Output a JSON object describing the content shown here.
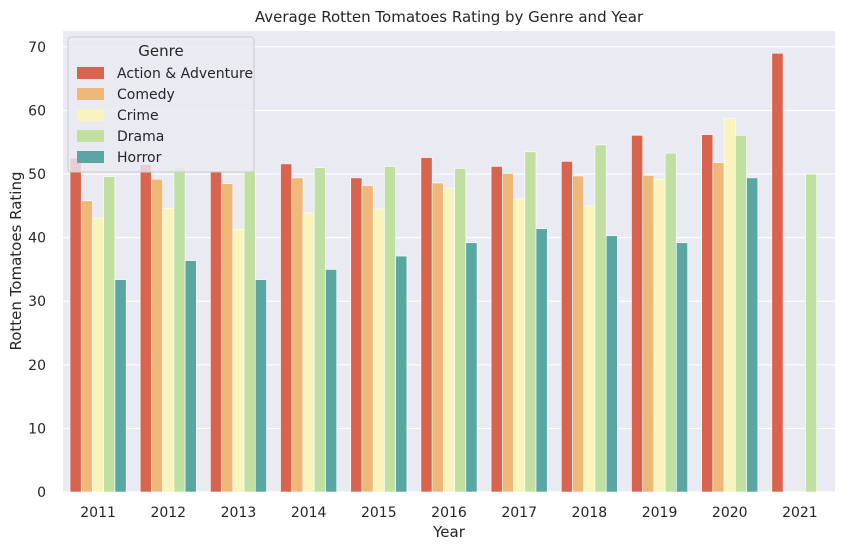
{
  "chart_data": {
    "type": "bar",
    "title": "Average Rotten Tomatoes Rating by Genre and Year",
    "xlabel": "Year",
    "ylabel": "Rotten Tomatoes Rating",
    "ylim": [
      0,
      72.5
    ],
    "yticks": [
      "0",
      "10",
      "20",
      "30",
      "40",
      "50",
      "60",
      "70"
    ],
    "grid": true,
    "legend": {
      "title": "Genre",
      "placement": "top-left"
    },
    "categories": [
      "2011",
      "2012",
      "2013",
      "2014",
      "2015",
      "2016",
      "2017",
      "2018",
      "2019",
      "2020",
      "2021"
    ],
    "series": [
      {
        "name": "Action & Adventure",
        "color": "#d9644e",
        "values": [
          52.5,
          51.5,
          50.5,
          51.6,
          49.4,
          52.6,
          51.2,
          52.0,
          56.1,
          56.2,
          69.0
        ]
      },
      {
        "name": "Comedy",
        "color": "#eeb978",
        "values": [
          45.8,
          49.2,
          48.5,
          49.4,
          48.2,
          48.6,
          50.1,
          49.7,
          49.8,
          51.8,
          null
        ]
      },
      {
        "name": "Crime",
        "color": "#f9f4bd",
        "values": [
          43.1,
          44.6,
          41.3,
          43.9,
          44.5,
          47.8,
          46.1,
          45.0,
          49.2,
          58.8,
          null
        ]
      },
      {
        "name": "Drama",
        "color": "#bfe0a1",
        "values": [
          49.6,
          51.0,
          50.5,
          51.0,
          51.2,
          50.9,
          53.5,
          54.6,
          53.3,
          56.1,
          50.0
        ]
      },
      {
        "name": "Horror",
        "color": "#5aa6a3",
        "values": [
          33.4,
          36.4,
          33.4,
          35.0,
          37.1,
          39.2,
          41.4,
          40.3,
          39.2,
          49.4,
          null
        ]
      }
    ]
  }
}
